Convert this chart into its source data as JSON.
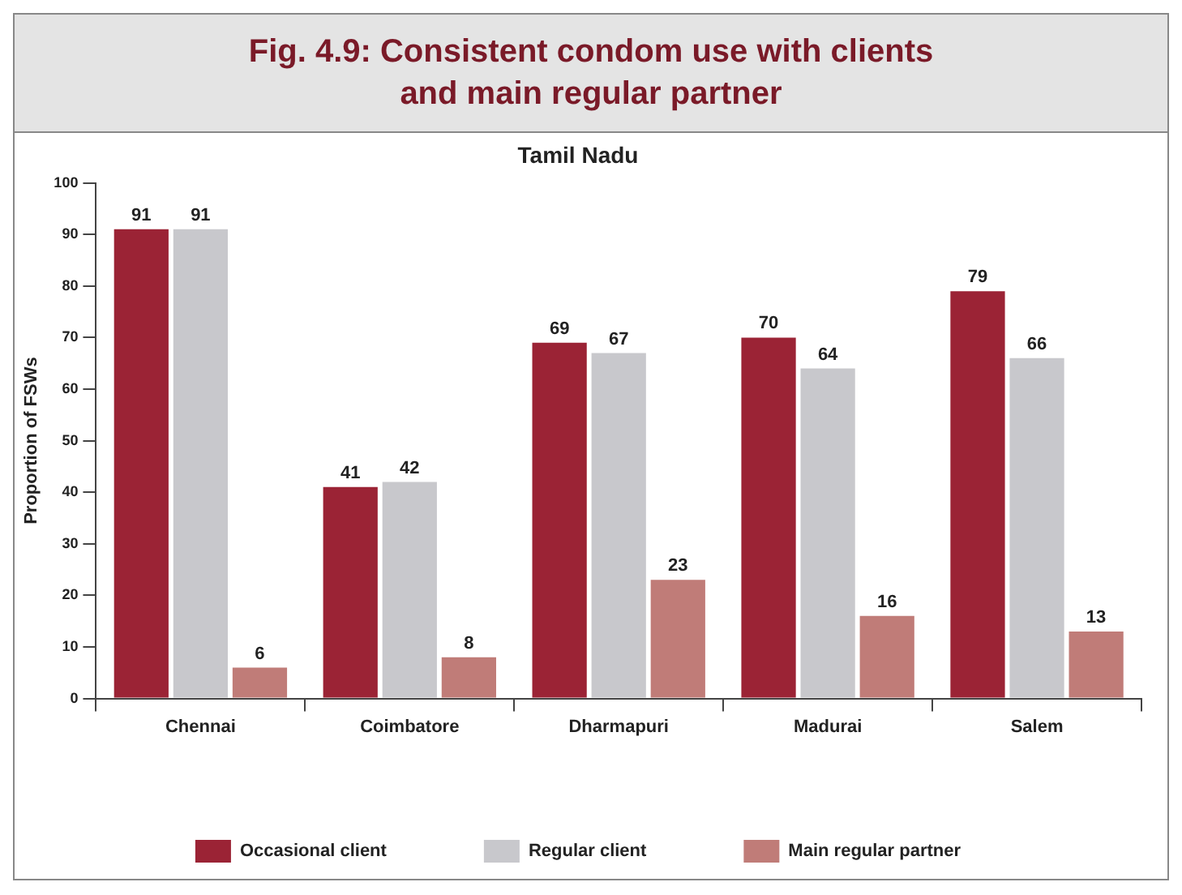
{
  "chart_data": {
    "type": "bar",
    "title": "Fig. 4.9: Consistent condom use with clients and main regular partner",
    "subtitle": "Tamil Nadu",
    "ylabel": "Proportion of FSWs",
    "categories": [
      "Chennai",
      "Coimbatore",
      "Dharmapuri",
      "Madurai",
      "Salem"
    ],
    "series": [
      {
        "name": "Occasional client",
        "color": "#9b2335",
        "values": [
          91,
          41,
          69,
          70,
          79
        ]
      },
      {
        "name": "Regular client",
        "color": "#c8c8cc",
        "values": [
          91,
          42,
          67,
          64,
          66
        ]
      },
      {
        "name": "Main regular partner",
        "color": "#c07c78",
        "values": [
          6,
          8,
          23,
          16,
          13
        ]
      }
    ],
    "ylim": [
      0,
      100
    ],
    "yticks": [
      0,
      10,
      20,
      30,
      40,
      50,
      60,
      70,
      80,
      90,
      100
    ],
    "grid": false,
    "legend": "bottom",
    "data_labels": true
  }
}
